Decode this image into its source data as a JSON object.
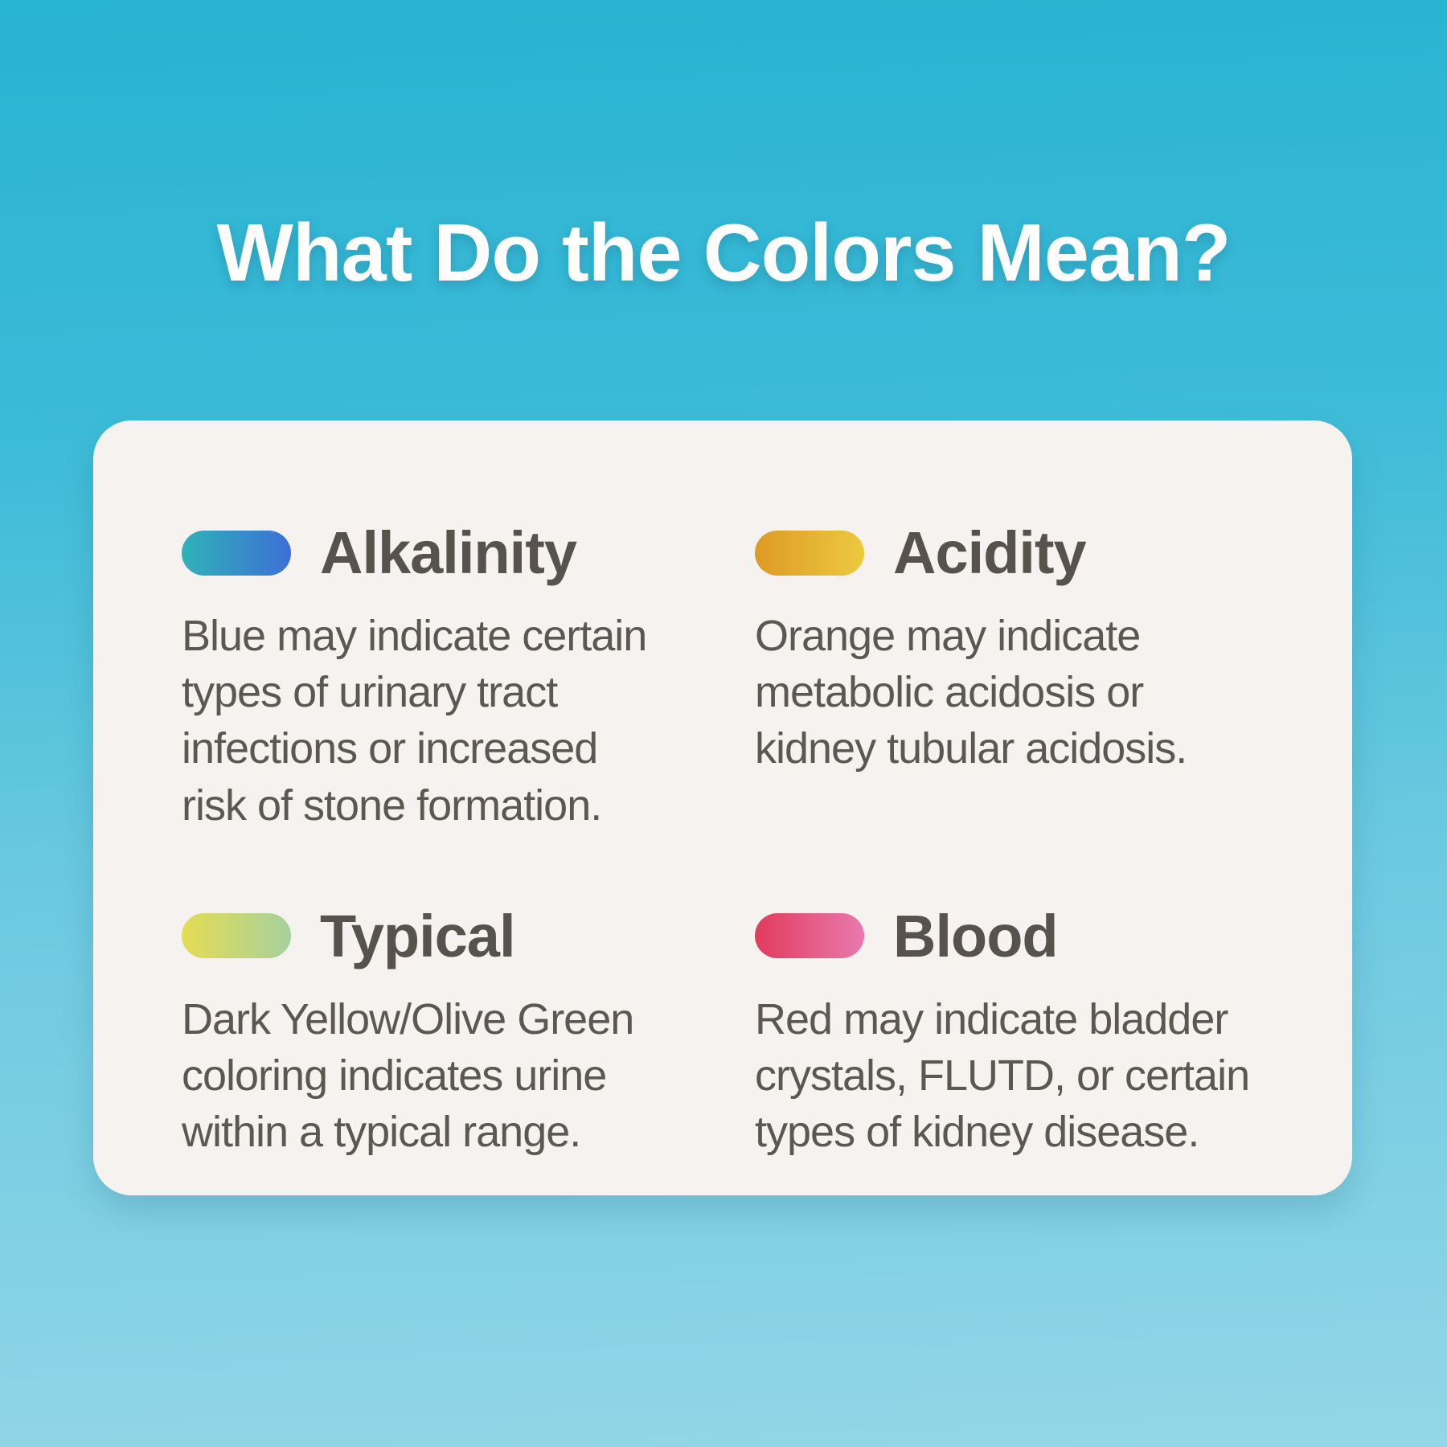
{
  "page": {
    "title": "What Do the Colors Mean?"
  },
  "colors": {
    "background_top": "#27b3d2",
    "background_bottom": "#93d6e7",
    "card_background": "#f5f2f0",
    "title_text": "#ffffff",
    "heading_text": "#57524b",
    "body_text": "#5c5751"
  },
  "sections": [
    {
      "name": "alkalinity",
      "label": "Alkalinity",
      "description": "Blue may indicate certain\ntypes of urinary tract\ninfections or increased\nrisk of stone formation.",
      "pill_gradient_start": "#30b2b9",
      "pill_gradient_end": "#3d6fd5"
    },
    {
      "name": "acidity",
      "label": "Acidity",
      "description": "Orange may indicate\nmetabolic acidosis or\nkidney tubular acidosis.",
      "pill_gradient_start": "#dd9a26",
      "pill_gradient_end": "#edc93e"
    },
    {
      "name": "typical",
      "label": "Typical",
      "description": "Dark Yellow/Olive Green\ncoloring indicates urine\nwithin a typical range.",
      "pill_gradient_start": "#e5dc52",
      "pill_gradient_end": "#a5d19e"
    },
    {
      "name": "blood",
      "label": "Blood",
      "description": "Red may indicate bladder\ncrystals, FLUTD, or certain\ntypes of kidney disease.",
      "pill_gradient_start": "#e23b5c",
      "pill_gradient_end": "#e87aae"
    }
  ]
}
